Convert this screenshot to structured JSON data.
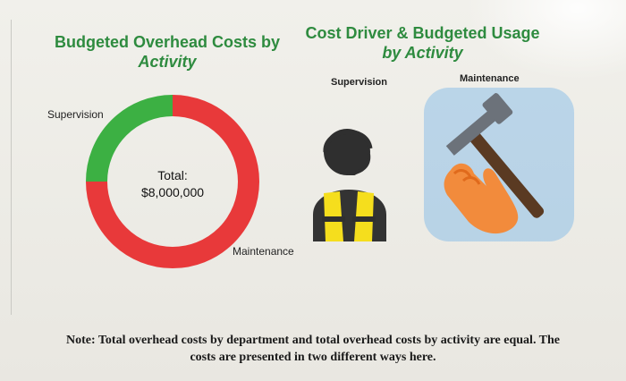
{
  "left_panel": {
    "title_line1": "Budgeted Overhead Costs by",
    "title_line2": "Activity",
    "center_label": "Total:",
    "center_value": "$8,000,000",
    "labels": {
      "supervision": "Supervision",
      "maintenance": "Maintenance"
    }
  },
  "right_panel": {
    "title_line1": "Cost Driver & Budgeted Usage",
    "title_line2": "by Activity",
    "labels": {
      "supervision": "Supervision",
      "maintenance": "Maintenance"
    },
    "icons": [
      "supervisor-icon",
      "maintenance-icon"
    ]
  },
  "chart_data": {
    "type": "pie",
    "donut": true,
    "categories": [
      "Supervision",
      "Maintenance"
    ],
    "values": [
      25,
      75
    ],
    "colors": [
      "#3cb043",
      "#e8393a"
    ],
    "center_text": [
      "Total:",
      "$8,000,000"
    ]
  },
  "note": "Note: Total overhead costs by department and total overhead costs by activity are equal. The costs are presented in two different ways here."
}
